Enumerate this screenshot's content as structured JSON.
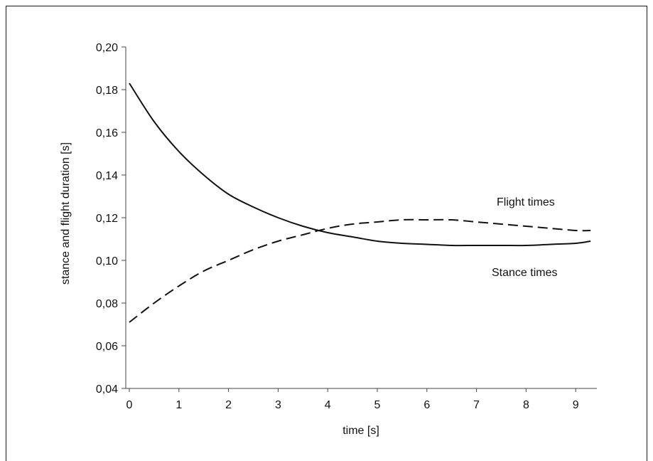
{
  "chart_data": {
    "type": "line",
    "title": "",
    "xlabel": "time [s]",
    "ylabel": "stance and flight duration [s]",
    "xlim": [
      0,
      9.3
    ],
    "ylim": [
      0.04,
      0.2
    ],
    "x_ticks": [
      "0",
      "1",
      "2",
      "3",
      "4",
      "5",
      "6",
      "7",
      "8",
      "9"
    ],
    "y_ticks": [
      "0,04",
      "0,06",
      "0,08",
      "0,10",
      "0,12",
      "0,14",
      "0,16",
      "0,18",
      "0,20"
    ],
    "grid": false,
    "legend": "none",
    "series": [
      {
        "name": "Stance times",
        "line_style": "solid",
        "color": "#111111",
        "x": [
          0,
          0.5,
          1,
          1.5,
          2,
          2.5,
          3,
          3.5,
          4,
          4.5,
          5,
          5.5,
          6,
          6.5,
          7,
          7.5,
          8,
          8.5,
          9,
          9.3
        ],
        "y": [
          0.183,
          0.165,
          0.151,
          0.14,
          0.131,
          0.125,
          0.12,
          0.116,
          0.113,
          0.111,
          0.109,
          0.108,
          0.1075,
          0.107,
          0.107,
          0.107,
          0.107,
          0.1075,
          0.108,
          0.109
        ]
      },
      {
        "name": "Flight times",
        "line_style": "dashed",
        "color": "#111111",
        "x": [
          0,
          0.5,
          1,
          1.5,
          2,
          2.5,
          3,
          3.5,
          4,
          4.5,
          5,
          5.5,
          6,
          6.5,
          7,
          7.5,
          8,
          8.5,
          9,
          9.3
        ],
        "y": [
          0.071,
          0.08,
          0.088,
          0.095,
          0.1,
          0.105,
          0.109,
          0.112,
          0.115,
          0.117,
          0.118,
          0.119,
          0.119,
          0.119,
          0.118,
          0.117,
          0.116,
          0.115,
          0.114,
          0.114
        ]
      }
    ],
    "annotations": [
      {
        "text": "Flight times",
        "series": "Flight times"
      },
      {
        "text": "Stance times",
        "series": "Stance times"
      }
    ]
  }
}
